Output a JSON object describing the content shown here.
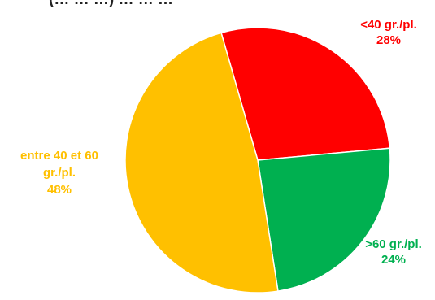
{
  "chart_data": {
    "type": "pie",
    "title": "(… … …) … … …",
    "slices": [
      {
        "label_lines": [
          "<40 gr./pl."
        ],
        "percent_label": "28%",
        "value": 28,
        "color": "#ff0000"
      },
      {
        "label_lines": [
          ">60 gr./pl."
        ],
        "percent_label": "24%",
        "value": 24,
        "color": "#00b050"
      },
      {
        "label_lines": [
          "entre 40 et 60",
          "gr./pl."
        ],
        "percent_label": "48%",
        "value": 48,
        "color": "#ffc000"
      }
    ],
    "start_angle_deg": -16,
    "clockwise": true
  }
}
